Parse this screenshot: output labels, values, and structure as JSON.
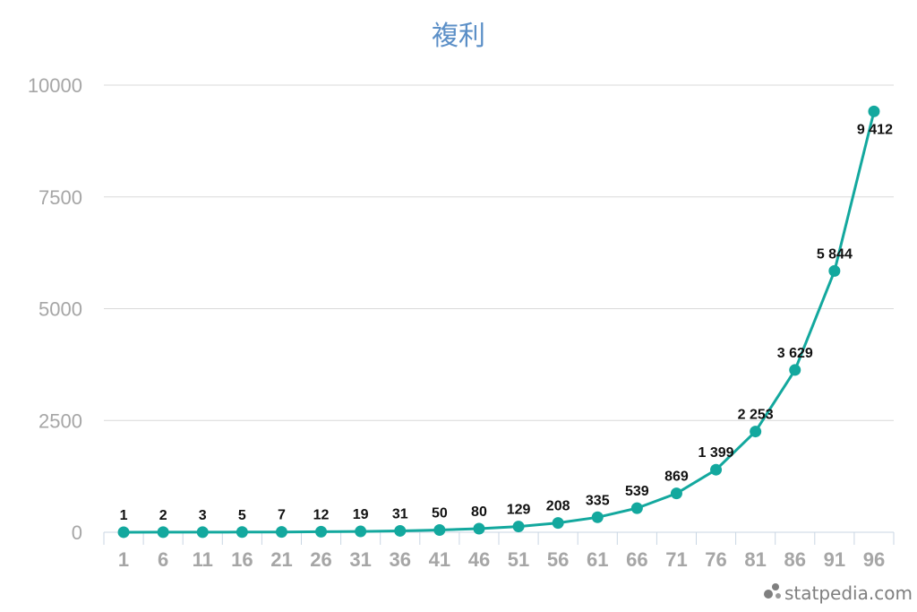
{
  "chart_data": {
    "type": "line",
    "title": "複利",
    "xlabel": "",
    "ylabel": "",
    "ylim": [
      0,
      10000
    ],
    "yticks": [
      0,
      2500,
      5000,
      7500,
      10000
    ],
    "categories": [
      "1",
      "6",
      "11",
      "16",
      "21",
      "26",
      "31",
      "36",
      "41",
      "46",
      "51",
      "56",
      "61",
      "66",
      "71",
      "76",
      "81",
      "86",
      "91",
      "96"
    ],
    "series": [
      {
        "values": [
          1,
          2,
          3,
          5,
          7,
          12,
          19,
          31,
          50,
          80,
          129,
          208,
          335,
          539,
          869,
          1399,
          2253,
          3629,
          5844,
          9412
        ],
        "labels": [
          "1",
          "2",
          "3",
          "5",
          "7",
          "12",
          "19",
          "31",
          "50",
          "80",
          "129",
          "208",
          "335",
          "539",
          "869",
          "1 399",
          "2 253",
          "3 629",
          "5 844",
          "9 412"
        ],
        "color": "#13a89e"
      }
    ],
    "grid": true,
    "legend": "none"
  },
  "watermark": {
    "text": "statpedia.com",
    "color": "#7f7f7f"
  }
}
